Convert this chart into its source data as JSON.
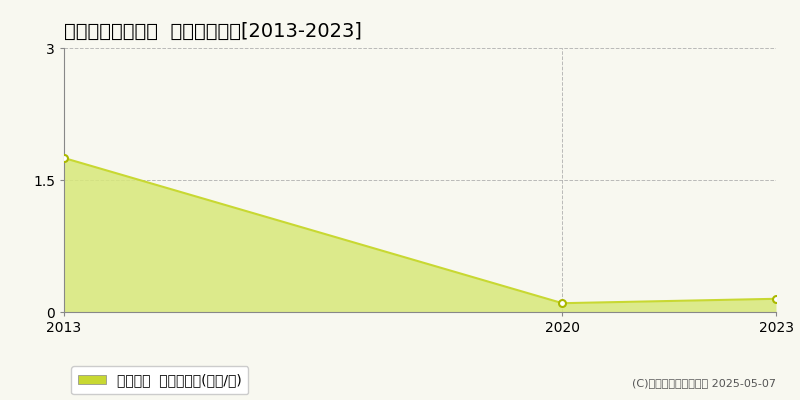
{
  "title": "多気郡大台町下楠  土地価格推移[2013-2023]",
  "years": [
    2013,
    2020,
    2023
  ],
  "values": [
    1.75,
    0.1,
    0.15
  ],
  "line_color": "#c8d832",
  "fill_color": "#d8e87a",
  "fill_alpha": 0.85,
  "marker_color": "white",
  "marker_edge_color": "#aab800",
  "background_color": "#f8f8f0",
  "plot_bg_color": "#f8f8f0",
  "grid_color": "#aaaaaa",
  "xlim": [
    2013,
    2023
  ],
  "ylim": [
    0,
    3
  ],
  "yticks": [
    0,
    1.5,
    3
  ],
  "xticks": [
    2013,
    2020,
    2023
  ],
  "legend_label": "土地価格  平均坪単価(万円/坪)",
  "copyright_text": "(C)土地価格ドットコム 2025-05-07",
  "title_fontsize": 14,
  "axis_fontsize": 10,
  "legend_fontsize": 10,
  "legend_square_color": "#c8d832"
}
